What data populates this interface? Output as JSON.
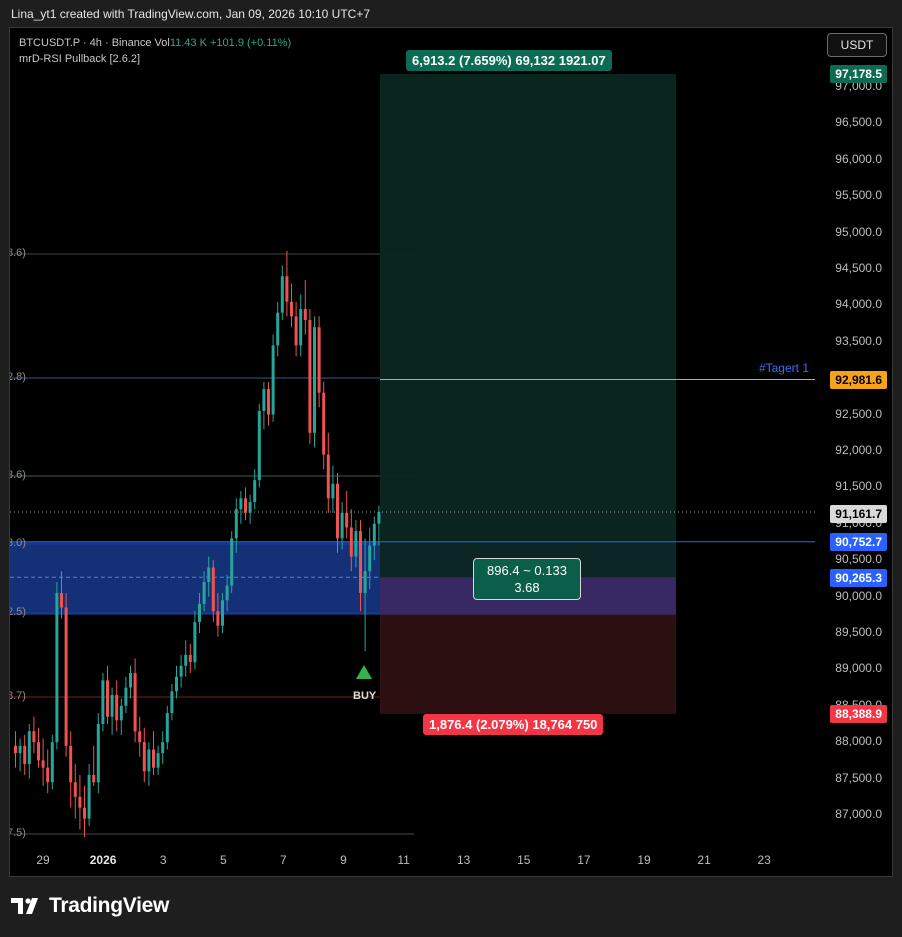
{
  "header": {
    "credit": "Lina_yt1 created with TradingView.com, Jan 09, 2026 10:10 UTC+7"
  },
  "legend": {
    "symbol": "BTCUSDT.P · 4h · Binance",
    "vol_label": "Vol",
    "vol_value": "11.43 K",
    "vol_change": "+101.9 (+0.11%)",
    "indicator": "mrD-RSI Pullback [2.6.2]"
  },
  "currency_button": "USDT",
  "price_axis": {
    "labels": [
      "97,000.0",
      "96,500.0",
      "96,000.0",
      "95,500.0",
      "95,000.0",
      "94,500.0",
      "94,000.0",
      "93,500.0",
      "93,000.0",
      "92,500.0",
      "92,000.0",
      "91,500.0",
      "91,000.0",
      "90,500.0",
      "90,000.0",
      "89,500.0",
      "89,000.0",
      "88,500.0",
      "88,000.0",
      "87,500.0",
      "87,000.0"
    ],
    "tags": {
      "target_price": "97,178.5",
      "target1_price": "92,981.6",
      "last_price": "91,161.7",
      "entry_upper": "90,752.7",
      "entry_price": "90,265.3",
      "stop_price": "88,388.9"
    }
  },
  "date_axis": [
    "29",
    "2026",
    "3",
    "5",
    "7",
    "9",
    "11",
    "13",
    "15",
    "17",
    "19",
    "21",
    "23"
  ],
  "position_tool": {
    "profit_box": "6,913.2 (7.659%) 69,132 1921.07",
    "loss_box": "1,876.4 (2.079%) 18,764 750",
    "mid_line1": "896.4 ~ 0.133",
    "mid_line2": "3.68"
  },
  "target_label": "#Tagert 1",
  "fib_labels": [
    "8.6)",
    "2.8)",
    "3.6)",
    "3.0)",
    "2.5)",
    "8.7)",
    "7.5)"
  ],
  "signal": {
    "buy_label": "BUY"
  },
  "brand": {
    "name": "TradingView"
  },
  "colors": {
    "up": "#26a69a",
    "down": "#ef5350",
    "profit_zone": "#0b2621",
    "loss_zone": "#2e1012",
    "entry_zone": "#173a8c",
    "tag_green": "#0b6b55",
    "tag_blue": "#2962ff",
    "tag_orange": "#f7a21b",
    "tag_red": "#f23645"
  },
  "chart_data": {
    "type": "candlestick",
    "symbol": "BTCUSDT.P",
    "timeframe": "4h",
    "ylim": [
      86500,
      97600
    ],
    "x_ticks": [
      "29",
      "2026",
      "3",
      "5",
      "7",
      "9",
      "11",
      "13",
      "15",
      "17",
      "19",
      "21",
      "23"
    ],
    "candles": [
      {
        "o": 87950,
        "h": 88150,
        "l": 87650,
        "c": 87850
      },
      {
        "o": 87850,
        "h": 88050,
        "l": 87600,
        "c": 87950
      },
      {
        "o": 87950,
        "h": 88100,
        "l": 87550,
        "c": 87700
      },
      {
        "o": 87700,
        "h": 88250,
        "l": 87500,
        "c": 88150
      },
      {
        "o": 88150,
        "h": 88350,
        "l": 87850,
        "c": 88000
      },
      {
        "o": 88000,
        "h": 88200,
        "l": 87650,
        "c": 87750
      },
      {
        "o": 87750,
        "h": 88050,
        "l": 87400,
        "c": 87650
      },
      {
        "o": 87650,
        "h": 87900,
        "l": 87300,
        "c": 87450
      },
      {
        "o": 87450,
        "h": 88100,
        "l": 87350,
        "c": 88000
      },
      {
        "o": 88000,
        "h": 90200,
        "l": 87900,
        "c": 90050
      },
      {
        "o": 90050,
        "h": 90350,
        "l": 89700,
        "c": 89850
      },
      {
        "o": 89850,
        "h": 90050,
        "l": 87800,
        "c": 87950
      },
      {
        "o": 87950,
        "h": 88150,
        "l": 87100,
        "c": 87450
      },
      {
        "o": 87450,
        "h": 87700,
        "l": 86950,
        "c": 87250
      },
      {
        "o": 87250,
        "h": 87550,
        "l": 86800,
        "c": 87100
      },
      {
        "o": 87100,
        "h": 87400,
        "l": 86700,
        "c": 86950
      },
      {
        "o": 86950,
        "h": 87700,
        "l": 86850,
        "c": 87550
      },
      {
        "o": 87550,
        "h": 87950,
        "l": 87400,
        "c": 87450
      },
      {
        "o": 87450,
        "h": 88400,
        "l": 87300,
        "c": 88250
      },
      {
        "o": 88250,
        "h": 88950,
        "l": 88150,
        "c": 88850
      },
      {
        "o": 88850,
        "h": 89050,
        "l": 88250,
        "c": 88350
      },
      {
        "o": 88350,
        "h": 88750,
        "l": 88100,
        "c": 88650
      },
      {
        "o": 88650,
        "h": 88850,
        "l": 88150,
        "c": 88300
      },
      {
        "o": 88300,
        "h": 88600,
        "l": 88100,
        "c": 88500
      },
      {
        "o": 88500,
        "h": 88900,
        "l": 88400,
        "c": 88750
      },
      {
        "o": 88750,
        "h": 89050,
        "l": 88600,
        "c": 88950
      },
      {
        "o": 88950,
        "h": 89150,
        "l": 88000,
        "c": 88150
      },
      {
        "o": 88150,
        "h": 88350,
        "l": 87800,
        "c": 88000
      },
      {
        "o": 88000,
        "h": 88200,
        "l": 87450,
        "c": 87600
      },
      {
        "o": 87600,
        "h": 88000,
        "l": 87400,
        "c": 87900
      },
      {
        "o": 87900,
        "h": 88150,
        "l": 87550,
        "c": 87650
      },
      {
        "o": 87650,
        "h": 87950,
        "l": 87550,
        "c": 87850
      },
      {
        "o": 87850,
        "h": 88150,
        "l": 87700,
        "c": 88000
      },
      {
        "o": 88000,
        "h": 88500,
        "l": 87900,
        "c": 88400
      },
      {
        "o": 88400,
        "h": 88800,
        "l": 88300,
        "c": 88700
      },
      {
        "o": 88700,
        "h": 89050,
        "l": 88600,
        "c": 88900
      },
      {
        "o": 88900,
        "h": 89200,
        "l": 88750,
        "c": 89050
      },
      {
        "o": 89050,
        "h": 89400,
        "l": 88900,
        "c": 89200
      },
      {
        "o": 89200,
        "h": 89350,
        "l": 88950,
        "c": 89100
      },
      {
        "o": 89100,
        "h": 89800,
        "l": 89000,
        "c": 89650
      },
      {
        "o": 89650,
        "h": 90050,
        "l": 89500,
        "c": 89900
      },
      {
        "o": 89900,
        "h": 90350,
        "l": 89800,
        "c": 90200
      },
      {
        "o": 90200,
        "h": 90550,
        "l": 90000,
        "c": 90400
      },
      {
        "o": 90400,
        "h": 90500,
        "l": 89650,
        "c": 89800
      },
      {
        "o": 89800,
        "h": 90050,
        "l": 89450,
        "c": 89600
      },
      {
        "o": 89600,
        "h": 90050,
        "l": 89500,
        "c": 89950
      },
      {
        "o": 89950,
        "h": 90300,
        "l": 89800,
        "c": 90150
      },
      {
        "o": 90150,
        "h": 90900,
        "l": 90050,
        "c": 90800
      },
      {
        "o": 90800,
        "h": 91350,
        "l": 90600,
        "c": 91200
      },
      {
        "o": 91200,
        "h": 91450,
        "l": 91000,
        "c": 91350
      },
      {
        "o": 91350,
        "h": 91500,
        "l": 91050,
        "c": 91150
      },
      {
        "o": 91150,
        "h": 91400,
        "l": 91000,
        "c": 91300
      },
      {
        "o": 91300,
        "h": 91750,
        "l": 91200,
        "c": 91600
      },
      {
        "o": 91600,
        "h": 92650,
        "l": 91500,
        "c": 92550
      },
      {
        "o": 92550,
        "h": 92950,
        "l": 92300,
        "c": 92850
      },
      {
        "o": 92850,
        "h": 92950,
        "l": 92350,
        "c": 92500
      },
      {
        "o": 92500,
        "h": 93600,
        "l": 92400,
        "c": 93450
      },
      {
        "o": 93450,
        "h": 94050,
        "l": 93300,
        "c": 93900
      },
      {
        "o": 93900,
        "h": 94550,
        "l": 93800,
        "c": 94400
      },
      {
        "o": 94400,
        "h": 94750,
        "l": 93850,
        "c": 94050
      },
      {
        "o": 94050,
        "h": 94300,
        "l": 93700,
        "c": 93850
      },
      {
        "o": 93850,
        "h": 94050,
        "l": 93300,
        "c": 93450
      },
      {
        "o": 93450,
        "h": 94150,
        "l": 93300,
        "c": 93950
      },
      {
        "o": 93950,
        "h": 94350,
        "l": 93600,
        "c": 93800
      },
      {
        "o": 93800,
        "h": 93950,
        "l": 92100,
        "c": 92250
      },
      {
        "o": 92250,
        "h": 93850,
        "l": 92050,
        "c": 93700
      },
      {
        "o": 93700,
        "h": 93850,
        "l": 92600,
        "c": 92800
      },
      {
        "o": 92800,
        "h": 92950,
        "l": 91750,
        "c": 91950
      },
      {
        "o": 91950,
        "h": 92250,
        "l": 91150,
        "c": 91350
      },
      {
        "o": 91350,
        "h": 91800,
        "l": 91150,
        "c": 91550
      },
      {
        "o": 91550,
        "h": 91700,
        "l": 90600,
        "c": 90800
      },
      {
        "o": 90800,
        "h": 91300,
        "l": 90650,
        "c": 91150
      },
      {
        "o": 91150,
        "h": 91450,
        "l": 90800,
        "c": 90950
      },
      {
        "o": 90950,
        "h": 91200,
        "l": 90350,
        "c": 90550
      },
      {
        "o": 90550,
        "h": 91050,
        "l": 90400,
        "c": 90900
      },
      {
        "o": 90900,
        "h": 91050,
        "l": 89800,
        "c": 90050
      },
      {
        "o": 90050,
        "h": 90800,
        "l": 89250,
        "c": 90350
      },
      {
        "o": 90350,
        "h": 90950,
        "l": 90100,
        "c": 90700
      },
      {
        "o": 90700,
        "h": 91100,
        "l": 90500,
        "c": 91000
      },
      {
        "o": 91000,
        "h": 91250,
        "l": 90700,
        "c": 91162
      }
    ]
  }
}
